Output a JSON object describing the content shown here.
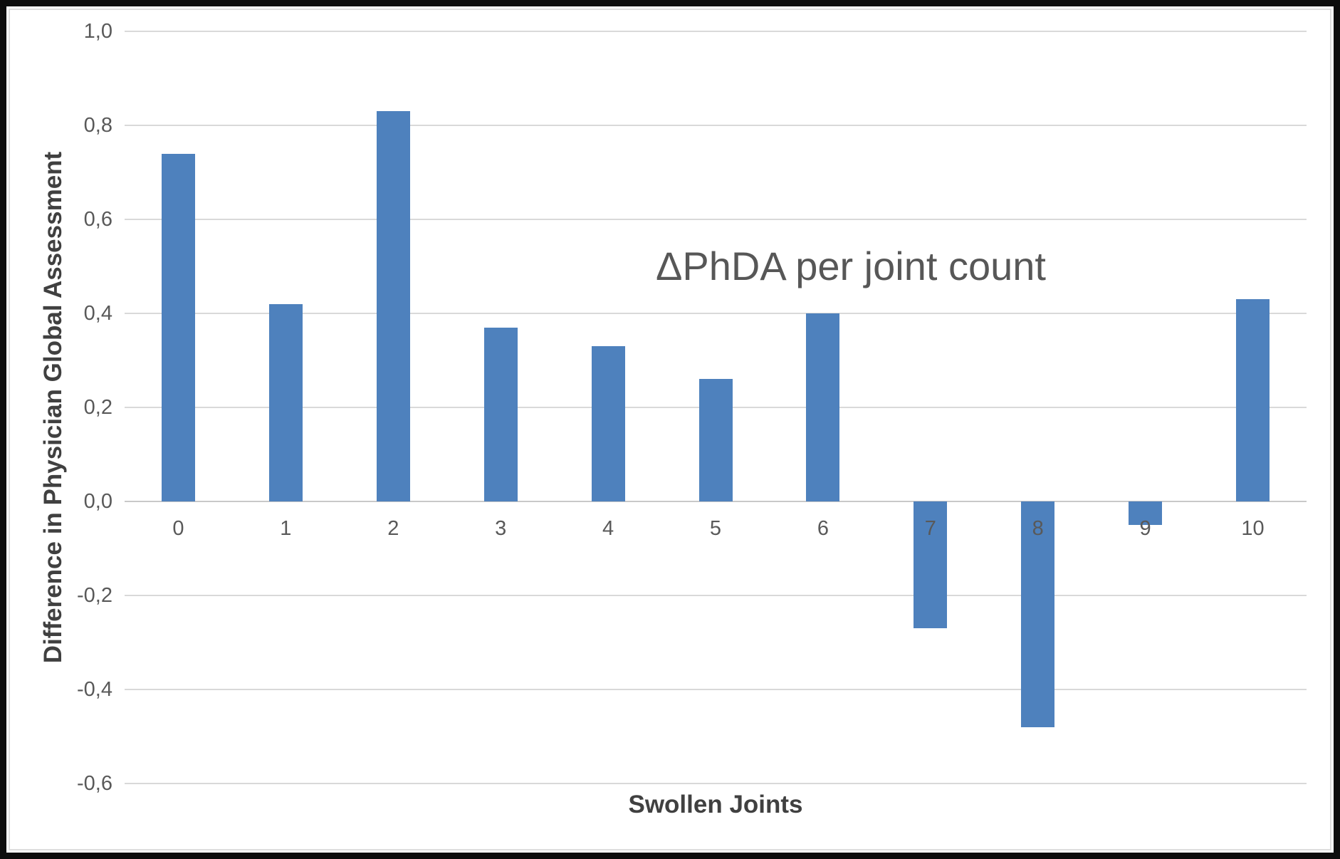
{
  "chart_data": {
    "type": "bar",
    "title": "ΔPhDA per joint count",
    "xlabel": "Swollen Joints",
    "ylabel": "Difference in Physician Global Assessment",
    "categories": [
      "0",
      "1",
      "2",
      "3",
      "4",
      "5",
      "6",
      "7",
      "8",
      "9",
      "10"
    ],
    "values": [
      0.74,
      0.42,
      0.83,
      0.37,
      0.33,
      0.26,
      0.4,
      -0.27,
      -0.48,
      -0.05,
      0.43
    ],
    "series_name": "",
    "ylim": [
      -0.6,
      1.0
    ],
    "ytick_step": 0.2,
    "ytick_labels": [
      "1,0",
      "0,8",
      "0,6",
      "0,4",
      "0,2",
      "0,0",
      "-0,2",
      "-0,4",
      "-0,6"
    ],
    "decimal_separator": ",",
    "grid": true,
    "legend": false,
    "legend_position": "none",
    "colors": {
      "bar": "#4E81BD",
      "gridline": "#d9d9d9",
      "zero_axis": "#c9c9c9",
      "tick_text": "#595959",
      "title_text": "#575757",
      "axis_title_text": "#404040",
      "frame": "#0d0d0d",
      "inner_border": "#dedede"
    }
  }
}
